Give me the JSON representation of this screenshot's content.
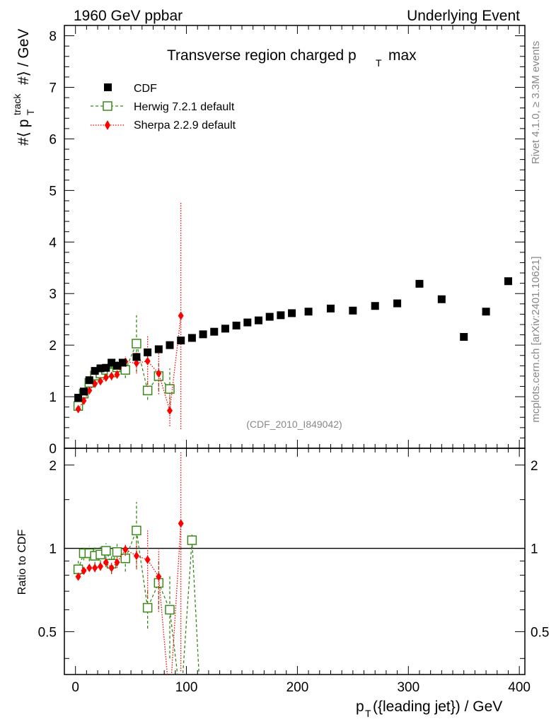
{
  "header": {
    "left": "1960 GeV ppbar",
    "right": "Underlying Event"
  },
  "side_labels": {
    "rivet": "Rivet 4.1.0, ≥ 3.3M events",
    "mcplots": "mcplots.cern.ch [arXiv:2401.10621]"
  },
  "colors": {
    "cdf": "#000000",
    "herwig": "#3a8a1a",
    "sherpa": "#ff0000",
    "watermark": "#888888"
  },
  "chart_data": {
    "type": "scatter",
    "title": "Transverse region charged p_T max",
    "analysis_id": "(CDF_2010_I849042)",
    "ylabel": "#⟨ p_T^track #⟩ / GeV",
    "ratio_ylabel": "Ratio to CDF",
    "xlabel": "p_T({leading jet}) / GeV",
    "xlim": [
      -10,
      405
    ],
    "ylim": [
      0,
      8.2
    ],
    "ratio_ylim": [
      0.35,
      2.3
    ],
    "x_ticks": [
      0,
      100,
      200,
      300,
      400
    ],
    "y_ticks": [
      0,
      1,
      2,
      3,
      4,
      5,
      6,
      7,
      8
    ],
    "ratio_ticks": [
      0.5,
      1,
      2
    ],
    "legend": [
      "CDF",
      "Herwig 7.2.1 default",
      "Sherpa 2.2.9 default"
    ],
    "series": [
      {
        "name": "CDF",
        "marker": "square",
        "points": [
          [
            2.5,
            0.98
          ],
          [
            7.5,
            1.1
          ],
          [
            12.5,
            1.32
          ],
          [
            17.5,
            1.5
          ],
          [
            22.5,
            1.55
          ],
          [
            27.5,
            1.56
          ],
          [
            32.5,
            1.66
          ],
          [
            37.5,
            1.6
          ],
          [
            42.5,
            1.66
          ],
          [
            55,
            1.77
          ],
          [
            65,
            1.86
          ],
          [
            75,
            1.92
          ],
          [
            85,
            2.0
          ],
          [
            95,
            2.09
          ],
          [
            105,
            2.14
          ],
          [
            115,
            2.21
          ],
          [
            125,
            2.26
          ],
          [
            135,
            2.32
          ],
          [
            145,
            2.38
          ],
          [
            155,
            2.44
          ],
          [
            165,
            2.48
          ],
          [
            175,
            2.55
          ],
          [
            185,
            2.58
          ],
          [
            195,
            2.62
          ],
          [
            210,
            2.65
          ],
          [
            230,
            2.71
          ],
          [
            250,
            2.67
          ],
          [
            270,
            2.76
          ],
          [
            290,
            2.81
          ],
          [
            310,
            3.19
          ],
          [
            330,
            2.89
          ],
          [
            350,
            2.16
          ],
          [
            370,
            2.65
          ],
          [
            390,
            3.24
          ]
        ]
      },
      {
        "name": "Herwig 7.2.1 default",
        "marker": "open-square",
        "line": "dashed",
        "points": [
          [
            2.5,
            0.82,
            0.06
          ],
          [
            7.5,
            1.06,
            0.06
          ],
          [
            12.5,
            1.27,
            0.08
          ],
          [
            17.5,
            1.41,
            0.1
          ],
          [
            22.5,
            1.45,
            0.1
          ],
          [
            27.5,
            1.52,
            0.1
          ],
          [
            32.5,
            1.47,
            0.12
          ],
          [
            37.5,
            1.57,
            0.12
          ],
          [
            45,
            1.52,
            0.16
          ],
          [
            55,
            2.03,
            0.55
          ],
          [
            65,
            1.12,
            0.18
          ],
          [
            75,
            1.4,
            0.28
          ],
          [
            85,
            1.15,
            0.4
          ]
        ],
        "ratio": [
          [
            2.5,
            0.84
          ],
          [
            7.5,
            0.96
          ],
          [
            12.5,
            0.96
          ],
          [
            17.5,
            0.94
          ],
          [
            22.5,
            0.95
          ],
          [
            27.5,
            0.98
          ],
          [
            32.5,
            0.88
          ],
          [
            37.5,
            0.97
          ],
          [
            45,
            0.92
          ],
          [
            55,
            1.16
          ],
          [
            65,
            0.61
          ],
          [
            75,
            0.75
          ],
          [
            85,
            0.6
          ],
          [
            105,
            1.07
          ]
        ]
      },
      {
        "name": "Sherpa 2.2.9 default",
        "marker": "diamond",
        "line": "dotted",
        "points": [
          [
            2.5,
            0.76,
            0.04
          ],
          [
            7.5,
            0.92,
            0.04
          ],
          [
            12.5,
            1.12,
            0.05
          ],
          [
            17.5,
            1.25,
            0.06
          ],
          [
            22.5,
            1.3,
            0.06
          ],
          [
            27.5,
            1.37,
            0.07
          ],
          [
            32.5,
            1.4,
            0.08
          ],
          [
            37.5,
            1.43,
            0.08
          ],
          [
            45,
            1.68,
            0.1
          ],
          [
            55,
            1.65,
            0.2
          ],
          [
            65,
            1.69,
            0.5
          ],
          [
            75,
            1.45,
            0.4
          ],
          [
            85,
            0.73,
            0.3
          ],
          [
            95,
            2.57,
            2.2
          ]
        ],
        "ratio": [
          [
            2.5,
            0.79
          ],
          [
            7.5,
            0.83
          ],
          [
            12.5,
            0.85
          ],
          [
            17.5,
            0.85
          ],
          [
            22.5,
            0.86
          ],
          [
            27.5,
            0.89
          ],
          [
            32.5,
            0.85
          ],
          [
            37.5,
            0.89
          ],
          [
            45,
            0.99
          ],
          [
            55,
            0.94
          ],
          [
            65,
            0.91
          ],
          [
            75,
            0.79
          ],
          [
            95,
            1.23
          ]
        ]
      }
    ]
  }
}
